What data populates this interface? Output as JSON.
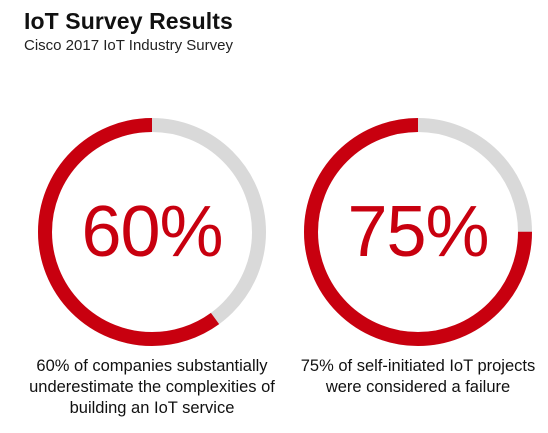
{
  "header": {
    "title": "IoT Survey Results",
    "subtitle": "Cisco 2017 IoT Industry Survey"
  },
  "colors": {
    "accent": "#c8000f",
    "track": "#d9d9d9"
  },
  "chart_data": [
    {
      "type": "pie",
      "value": 60,
      "max": 100,
      "label": "60%",
      "caption": "60% of companies substantially underestimate the complexities of building an IoT service"
    },
    {
      "type": "pie",
      "value": 75,
      "max": 100,
      "label": "75%",
      "caption": "75% of self-initiated IoT projects were considered a failure"
    }
  ]
}
